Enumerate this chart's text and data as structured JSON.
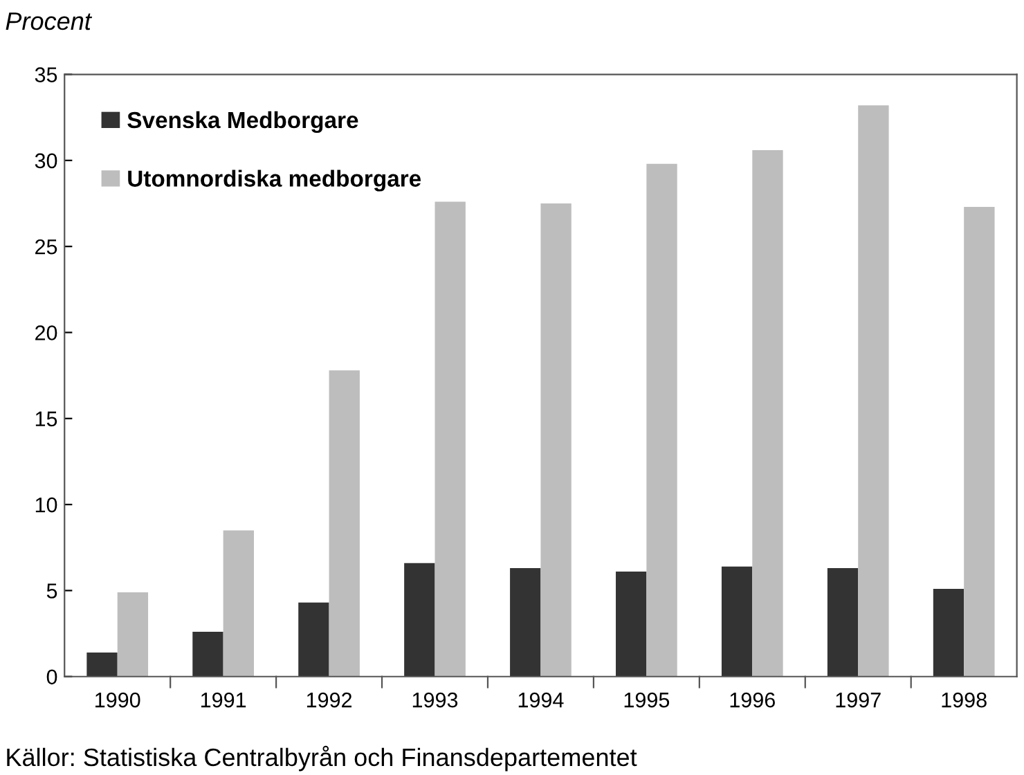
{
  "chart_data": {
    "type": "bar",
    "ylabel": "Procent",
    "categories": [
      "1990",
      "1991",
      "1992",
      "1993",
      "1994",
      "1995",
      "1996",
      "1997",
      "1998"
    ],
    "series": [
      {
        "name": "Svenska Medborgare",
        "color": "#333333",
        "values": [
          1.4,
          2.6,
          4.3,
          6.6,
          6.3,
          6.1,
          6.4,
          6.3,
          5.1
        ]
      },
      {
        "name": "Utomnordiska medborgare",
        "color": "#bdbdbd",
        "values": [
          4.9,
          8.5,
          17.8,
          27.6,
          27.5,
          29.8,
          30.6,
          33.2,
          27.3
        ]
      }
    ],
    "ylim": [
      0,
      35
    ],
    "yticks": [
      0,
      5,
      10,
      15,
      20,
      25,
      30,
      35
    ],
    "grid": false,
    "legend": "top left",
    "annotations": [
      "Källor: Statistiska Centralbyrån och Finansdepartementet"
    ]
  }
}
